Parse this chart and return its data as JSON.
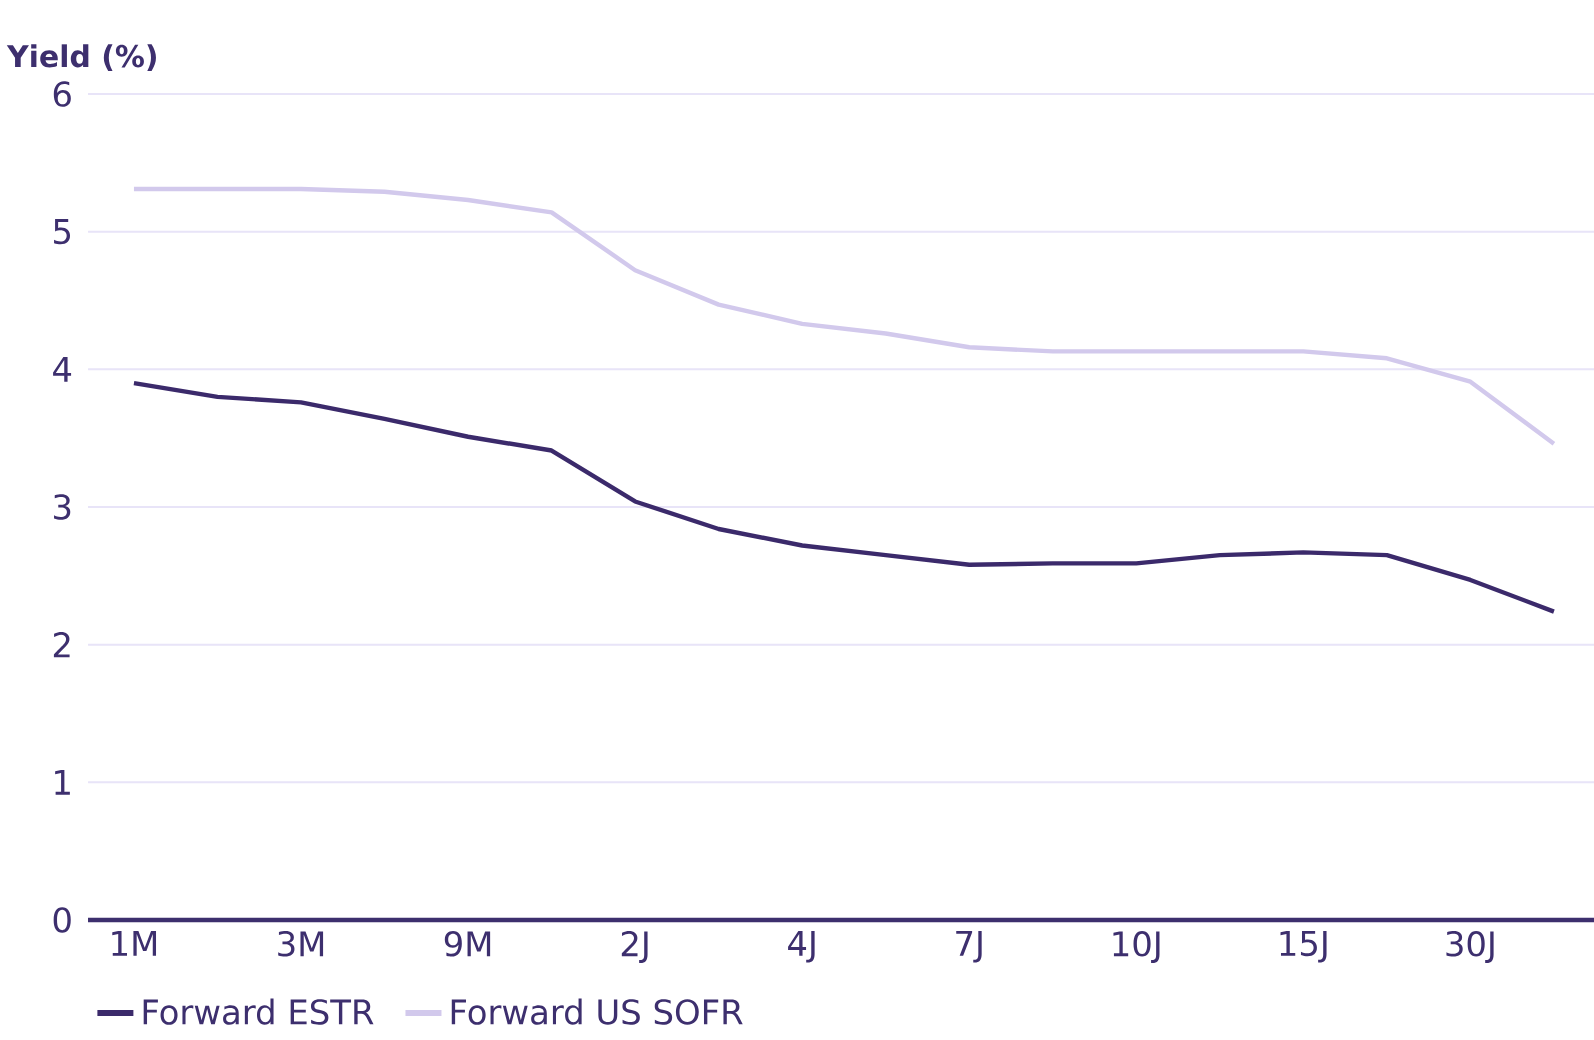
{
  "chart_data": {
    "type": "line",
    "ylabel": "Yield (%)",
    "categories": [
      "1M",
      null,
      "3M",
      null,
      "9M",
      null,
      "2J",
      null,
      "4J",
      null,
      "7J",
      null,
      "10J",
      null,
      "15J",
      null,
      "30J",
      null
    ],
    "series": [
      {
        "name": "Forward ESTR",
        "color": "#3b2a6b",
        "values": [
          3.9,
          3.8,
          3.76,
          3.64,
          3.51,
          3.41,
          3.04,
          2.84,
          2.72,
          2.65,
          2.58,
          2.59,
          2.59,
          2.65,
          2.67,
          2.65,
          2.47,
          2.24
        ]
      },
      {
        "name": "Forward US SOFR",
        "color": "#d2c9ec",
        "values": [
          5.31,
          5.31,
          5.31,
          5.29,
          5.23,
          5.14,
          4.72,
          4.47,
          4.33,
          4.26,
          4.16,
          4.13,
          4.13,
          4.13,
          4.13,
          4.08,
          3.91,
          3.46
        ]
      }
    ],
    "ylim": [
      0,
      6
    ],
    "yticks": [
      0,
      1,
      2,
      3,
      4,
      5,
      6
    ],
    "grid": "y",
    "legend": "bottom left",
    "marker": "none",
    "line_style": "solid"
  }
}
